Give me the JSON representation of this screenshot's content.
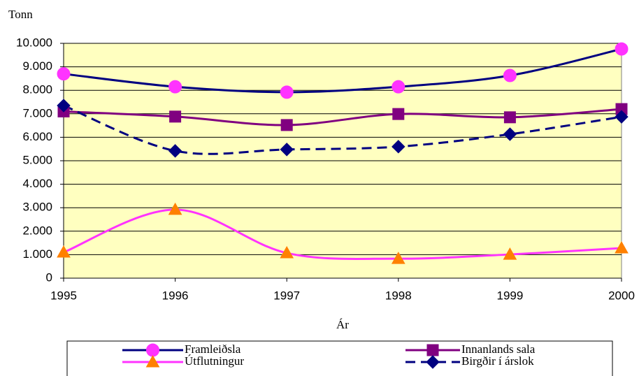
{
  "chart_data": {
    "type": "line",
    "y_label": "Tonn",
    "x_label": "Ár",
    "x": [
      1995,
      1996,
      1997,
      1998,
      1999,
      2000
    ],
    "xlim": [
      1995,
      2000
    ],
    "xticks": [
      1995,
      1996,
      1997,
      1998,
      1999,
      2000
    ],
    "ylim": [
      0,
      10000
    ],
    "yticks": [
      0,
      {
        "value": 1000,
        "label": "1.000"
      },
      {
        "value": 2000,
        "label": "2.000"
      },
      {
        "value": 3000,
        "label": "3.000"
      },
      {
        "value": 4000,
        "label": "4.000"
      },
      {
        "value": 5000,
        "label": "5.000"
      },
      {
        "value": 6000,
        "label": "6.000"
      },
      {
        "value": 7000,
        "label": "7.000"
      },
      {
        "value": 8000,
        "label": "8.000"
      },
      {
        "value": 9000,
        "label": "9.000"
      },
      {
        "value": 10000,
        "label": "10.000"
      }
    ],
    "grid": true,
    "plot_background": "#ffffc0",
    "smooth": true,
    "series": [
      {
        "name": "Framleiðsla",
        "color": "#000080",
        "marker": "circle",
        "marker_color": "#ff33ff",
        "dashed": false,
        "values": [
          8700,
          8150,
          7920,
          8150,
          8630,
          9760
        ]
      },
      {
        "name": "Innanlands sala",
        "color": "#800080",
        "marker": "square",
        "marker_color": "#800080",
        "dashed": false,
        "values": [
          7100,
          6880,
          6520,
          6990,
          6850,
          7200
        ]
      },
      {
        "name": "Útflutningur",
        "color": "#ff33ff",
        "marker": "triangle",
        "marker_color": "#ff8000",
        "dashed": false,
        "values": [
          1100,
          2920,
          1070,
          830,
          1010,
          1280
        ]
      },
      {
        "name": "Birgðir í árslok",
        "color": "#000080",
        "marker": "diamond",
        "marker_color": "#000080",
        "dashed": true,
        "values": [
          7350,
          5420,
          5480,
          5600,
          6130,
          6870
        ]
      }
    ]
  }
}
